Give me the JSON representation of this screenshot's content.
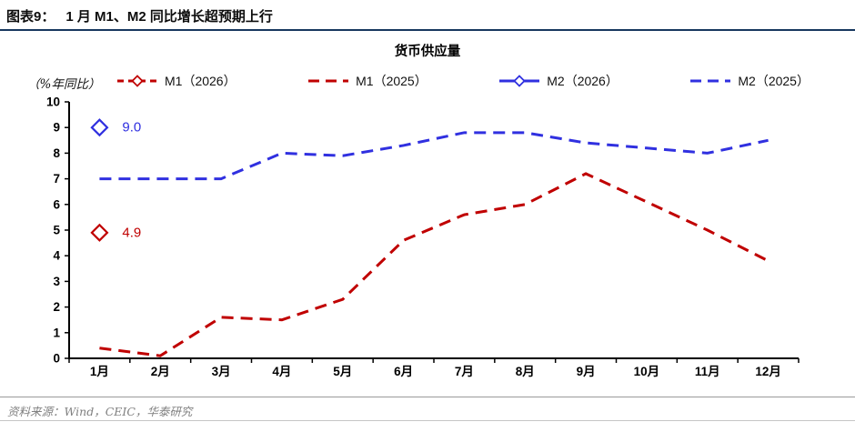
{
  "header": {
    "tag": "图表9：",
    "title": "1 月 M1、M2 同比增长超预期上行"
  },
  "chart": {
    "title": "货币供应量",
    "unit_label": "（%年同比）"
  },
  "source": {
    "prefix": "资料来源：",
    "text": "Wind，CEIC，华泰研究"
  },
  "colors": {
    "red": "#C00000",
    "blue": "#3030E0",
    "axis": "#000000",
    "header_rule": "#17375E",
    "source_text": "#808080"
  },
  "chart_data": {
    "type": "line",
    "title": "货币供应量",
    "ylabel": "（%年同比）",
    "xlabel": "",
    "ylim": [
      0,
      10
    ],
    "y_ticks": [
      0,
      1,
      2,
      3,
      4,
      5,
      6,
      7,
      8,
      9,
      10
    ],
    "grid": false,
    "legend_position": "top",
    "categories": [
      "1月",
      "2月",
      "3月",
      "4月",
      "5月",
      "6月",
      "7月",
      "8月",
      "9月",
      "10月",
      "11月",
      "12月"
    ],
    "series": [
      {
        "name": "M1（2026）",
        "color": "#C00000",
        "type": "point",
        "legend_style": "dash-diamond",
        "points": [
          {
            "month": "1月",
            "value": 4.9,
            "label": "4.9"
          }
        ]
      },
      {
        "name": "M1（2025）",
        "color": "#C00000",
        "type": "dashed-line",
        "legend_style": "dash",
        "values": [
          0.4,
          0.1,
          1.6,
          1.5,
          2.3,
          4.6,
          5.6,
          6.0,
          7.2,
          6.1,
          5.0,
          3.8
        ]
      },
      {
        "name": "M2（2026）",
        "color": "#3030E0",
        "type": "point",
        "legend_style": "solid-diamond",
        "points": [
          {
            "month": "1月",
            "value": 9.0,
            "label": "9.0"
          }
        ]
      },
      {
        "name": "M2（2025）",
        "color": "#3030E0",
        "type": "dashed-line",
        "legend_style": "dash",
        "values": [
          7.0,
          7.0,
          7.0,
          8.0,
          7.9,
          8.3,
          8.8,
          8.8,
          8.4,
          8.2,
          8.0,
          8.5
        ]
      }
    ]
  }
}
